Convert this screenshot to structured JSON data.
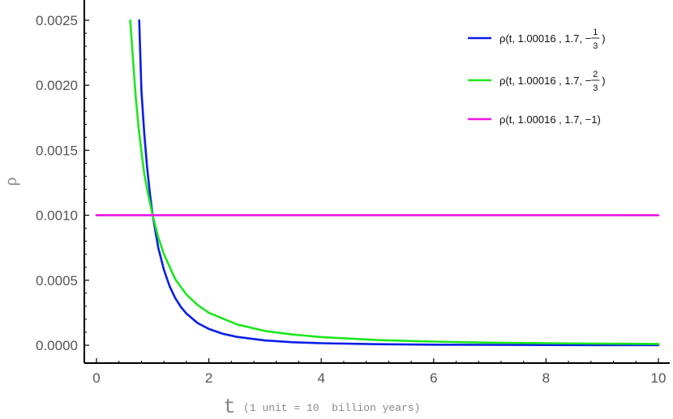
{
  "chart_data": {
    "type": "line",
    "title": "",
    "xlabel": "t",
    "xlabel_note": "(1 unit = 10  billion years)",
    "ylabel": "ρ",
    "xlim": [
      0,
      10
    ],
    "ylim": [
      0,
      0.0025
    ],
    "x_ticks": [
      0,
      2,
      4,
      6,
      8,
      10
    ],
    "x_tick_labels": [
      "0",
      "2",
      "4",
      "6",
      "8",
      "10"
    ],
    "y_ticks": [
      0,
      0.0005,
      0.001,
      0.0015,
      0.002,
      0.0025
    ],
    "y_tick_labels": [
      "0.0000",
      "0.0005",
      "0.0010",
      "0.0015",
      "0.0020",
      "0.0025"
    ],
    "grid": false,
    "legend_position": "top-right",
    "series": [
      {
        "name": "ρ(t, 1.00016 , 1.7, −1/3)",
        "legend": {
          "prefix": "ρ(t, 1.00016 , 1.7, −",
          "num": "1",
          "den": "3",
          "suffix": ")"
        },
        "color": "#0a1ee6",
        "x": [
          0.76,
          0.8,
          0.85,
          0.9,
          0.95,
          1.0,
          1.1,
          1.2,
          1.3,
          1.4,
          1.5,
          1.6,
          1.8,
          2.0,
          2.25,
          2.5,
          3.0,
          3.5,
          4.0,
          5.0,
          6.0,
          7.0,
          8.0,
          9.0,
          10.0
        ],
        "y": [
          0.0025,
          0.00196,
          0.00163,
          0.00137,
          0.00117,
          0.001,
          0.00075,
          0.00058,
          0.000455,
          0.000364,
          0.000296,
          0.000244,
          0.000171,
          0.000125,
          8.8e-05,
          6.4e-05,
          3.7e-05,
          2.3e-05,
          1.56e-05,
          8e-06,
          4.6e-06,
          2.9e-06,
          2e-06,
          1.4e-06,
          1e-06
        ]
      },
      {
        "name": "ρ(t, 1.00016 , 1.7, −2/3)",
        "legend": {
          "prefix": "ρ(t, 1.00016 , 1.7, −",
          "num": "2",
          "den": "3",
          "suffix": ")"
        },
        "color": "#1ee61e",
        "x": [
          0.6,
          0.65,
          0.7,
          0.75,
          0.8,
          0.85,
          0.9,
          0.95,
          1.0,
          1.1,
          1.2,
          1.4,
          1.6,
          1.8,
          2.0,
          2.5,
          3.0,
          3.5,
          4.0,
          5.0,
          6.0,
          7.0,
          8.0,
          9.0,
          10.0
        ],
        "y": [
          0.0025,
          0.0022,
          0.0019,
          0.00167,
          0.00149,
          0.00132,
          0.0012,
          0.0011,
          0.001,
          0.00083,
          0.0007,
          0.00051,
          0.00039,
          0.00031,
          0.00025,
          0.00016,
          0.00011,
          8.2e-05,
          6.3e-05,
          4e-05,
          2.8e-05,
          2e-05,
          1.56e-05,
          1.23e-05,
          1e-05
        ]
      },
      {
        "name": "ρ(t, 1.00016 , 1.7, −1)",
        "legend": {
          "prefix": "ρ(t, 1.00016 , 1.7, −1)",
          "num": "",
          "den": "",
          "suffix": ""
        },
        "color": "#f014e6",
        "x": [
          0,
          10
        ],
        "y": [
          0.001,
          0.001
        ]
      }
    ]
  }
}
